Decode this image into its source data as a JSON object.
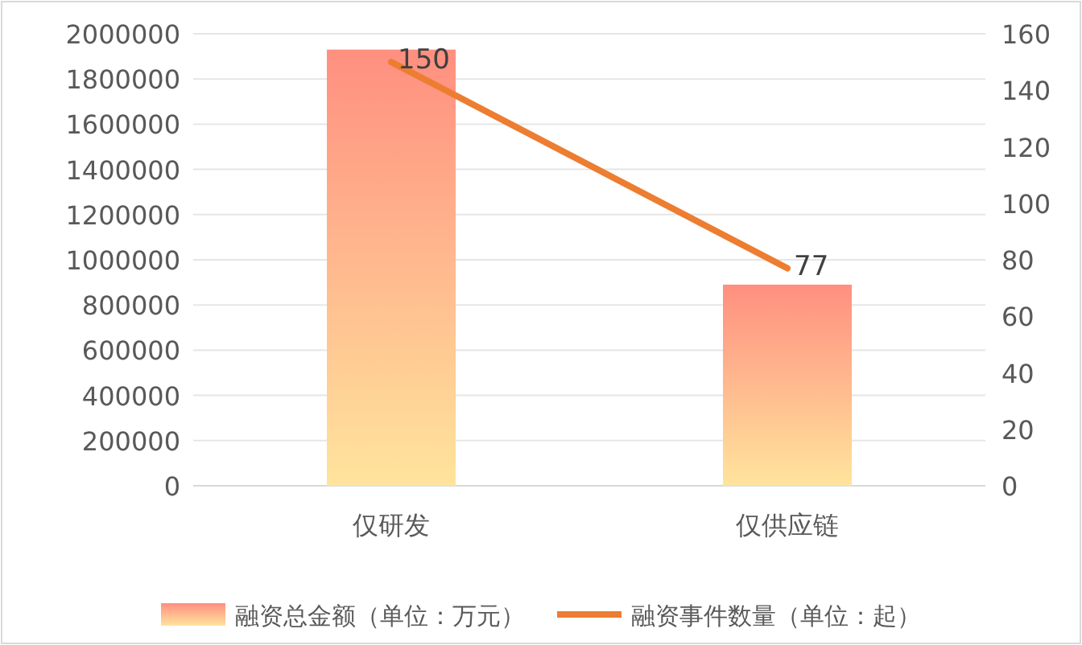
{
  "chart_data": {
    "type": "bar",
    "categories": [
      "仅研发",
      "仅供应链"
    ],
    "series": [
      {
        "name": "融资总金额（单位：万元）",
        "color": "#ff8f80",
        "values": [
          1930000,
          890000
        ]
      },
      {
        "name": "融资事件数量（单位：起）",
        "type": "line",
        "axis": "y2",
        "color": "#ed7d31",
        "values": [
          150,
          77
        ],
        "value_labels": [
          "150",
          "77"
        ]
      }
    ],
    "ylim": [
      0,
      2000000
    ],
    "yticks": [
      0,
      200000,
      400000,
      600000,
      800000,
      1000000,
      1200000,
      1400000,
      1600000,
      1800000,
      2000000
    ],
    "y2lim": [
      0,
      160
    ],
    "y2ticks": [
      0,
      20,
      40,
      60,
      80,
      100,
      120,
      140,
      160
    ],
    "grid": "y",
    "legend": "bottom",
    "marker": "none"
  }
}
